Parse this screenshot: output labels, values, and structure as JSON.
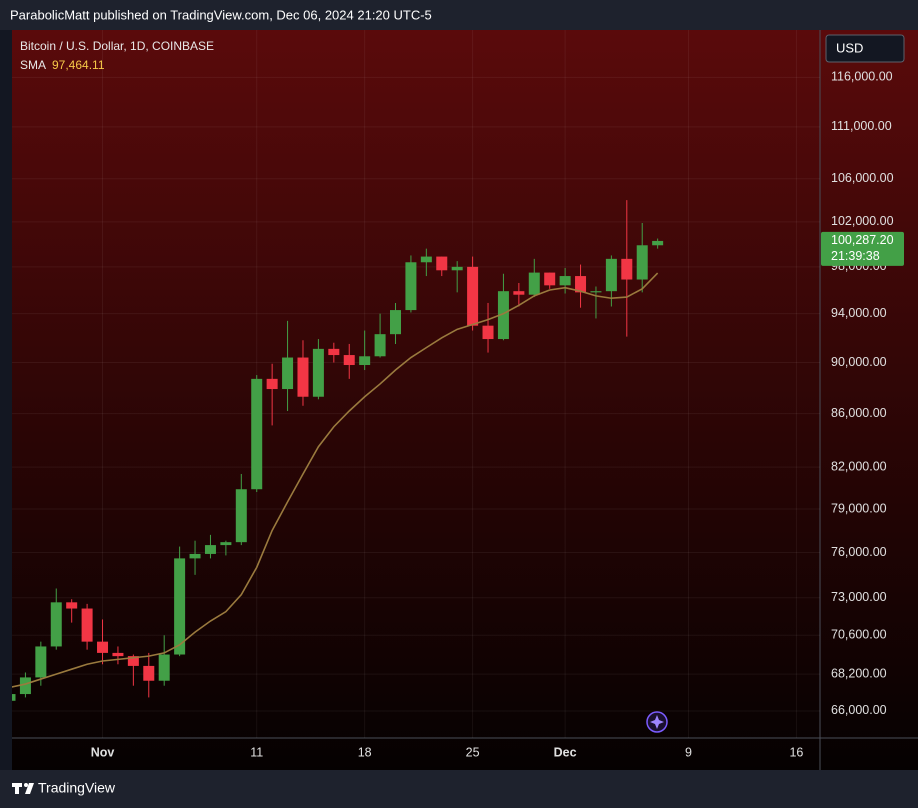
{
  "header": "ParabolicMatt published on TradingView.com, Dec 06, 2024 21:20 UTC-5",
  "footer": "TradingView",
  "currency": "USD",
  "chart_data": {
    "type": "candlestick",
    "title": "Bitcoin / U.S. Dollar, 1D, COINBASE",
    "categories": [
      null,
      null,
      null,
      null,
      null,
      null,
      "Nov",
      null,
      null,
      null,
      null,
      null,
      null,
      null,
      null,
      null,
      "11",
      null,
      null,
      null,
      null,
      null,
      null,
      "18",
      null,
      null,
      null,
      null,
      null,
      null,
      "25",
      null,
      null,
      null,
      null,
      null,
      "Dec",
      null,
      null,
      null,
      null,
      null,
      null,
      null,
      "9",
      null,
      null,
      null,
      null,
      null,
      null,
      "16",
      null
    ],
    "series": [
      {
        "up_color": "#43a047",
        "down_color": "#f23645",
        "open": [
          66600,
          67000,
          68000,
          69900,
          72700,
          72300,
          70200,
          69500,
          69300,
          68700,
          67800,
          69400,
          75600,
          75900,
          76500,
          76700,
          80400,
          88700,
          87900,
          90400,
          87300,
          91100,
          90600,
          89800,
          90500,
          92300,
          94300,
          98400,
          98900,
          97700,
          98000,
          93000,
          91900,
          95900,
          95600,
          97500,
          96400,
          97200,
          95800,
          95900,
          98700,
          96900,
          99900,
          null,
          null,
          null,
          null,
          null,
          null,
          null,
          null,
          null,
          null
        ],
        "high": [
          67300,
          68300,
          70200,
          73600,
          72900,
          72600,
          71600,
          69900,
          69400,
          69500,
          70600,
          76400,
          76800,
          77200,
          76800,
          81500,
          89000,
          89900,
          93400,
          91800,
          91900,
          91600,
          91500,
          92600,
          94000,
          94900,
          99000,
          99600,
          98900,
          98500,
          98900,
          94900,
          97400,
          96600,
          98700,
          97500,
          97900,
          98200,
          96300,
          99000,
          104000,
          101900,
          100500,
          null,
          null,
          null,
          null,
          null,
          null,
          null,
          null,
          null,
          null
        ],
        "low": [
          66500,
          66800,
          67500,
          69700,
          71400,
          69700,
          68800,
          68800,
          67500,
          66800,
          67500,
          69300,
          74500,
          75600,
          75800,
          76500,
          80200,
          85100,
          86200,
          86600,
          87100,
          90000,
          88700,
          89400,
          90400,
          91500,
          94100,
          97200,
          97200,
          95800,
          92600,
          90800,
          91800,
          94600,
          95400,
          96100,
          95700,
          94500,
          93600,
          94600,
          92100,
          95800,
          99600,
          null,
          null,
          null,
          null,
          null,
          null,
          null,
          null,
          null,
          null
        ],
        "close": [
          67000,
          68000,
          69900,
          72700,
          72300,
          70200,
          69500,
          69300,
          68700,
          67800,
          69400,
          75600,
          75900,
          76500,
          76700,
          80400,
          88700,
          87900,
          90400,
          87300,
          91100,
          90600,
          89800,
          90500,
          92300,
          94300,
          98400,
          98900,
          97700,
          98000,
          93000,
          91900,
          95900,
          95600,
          97500,
          96400,
          97200,
          95800,
          95900,
          98700,
          96900,
          99900,
          100287.2,
          null,
          null,
          null,
          null,
          null,
          null,
          null,
          null,
          null,
          null
        ]
      },
      {
        "name": "SMA",
        "color": "#9a7a3e",
        "values": [
          67400,
          67600,
          67900,
          68200,
          68500,
          68800,
          69000,
          69100,
          69200,
          69300,
          69500,
          70000,
          70800,
          71500,
          72100,
          73200,
          75000,
          77500,
          79500,
          81500,
          83500,
          85000,
          86200,
          87300,
          88300,
          89400,
          90400,
          91200,
          92000,
          92700,
          93100,
          93500,
          94000,
          94700,
          95500,
          96000,
          96200,
          95900,
          95500,
          95300,
          95400,
          96100,
          97464.11,
          null,
          null,
          null,
          null,
          null,
          null,
          null,
          null,
          null,
          null
        ]
      }
    ],
    "sma_value": {
      "value": 97464.11,
      "label": "97,464.11"
    },
    "last_price": {
      "value": 100287.2,
      "label": "100,287.20"
    },
    "countdown": "21:39:38",
    "log_scale": true,
    "grid": true,
    "ylim": [
      64430,
      121000
    ],
    "yticks": [
      {
        "value": 66000,
        "label": "66,000.00"
      },
      {
        "value": 68200,
        "label": "68,200.00"
      },
      {
        "value": 70600,
        "label": "70,600.00"
      },
      {
        "value": 73000,
        "label": "73,000.00"
      },
      {
        "value": 76000,
        "label": "76,000.00"
      },
      {
        "value": 79000,
        "label": "79,000.00"
      },
      {
        "value": 82000,
        "label": "82,000.00"
      },
      {
        "value": 86000,
        "label": "86,000.00"
      },
      {
        "value": 90000,
        "label": "90,000.00"
      },
      {
        "value": 94000,
        "label": "94,000.00"
      },
      {
        "value": 98000,
        "label": "98,000.00"
      },
      {
        "value": 102000,
        "label": "102,000.00"
      },
      {
        "value": 106000,
        "label": "106,000.00"
      },
      {
        "value": 111000,
        "label": "111,000.00"
      },
      {
        "value": 116000,
        "label": "116,000.00"
      }
    ]
  }
}
